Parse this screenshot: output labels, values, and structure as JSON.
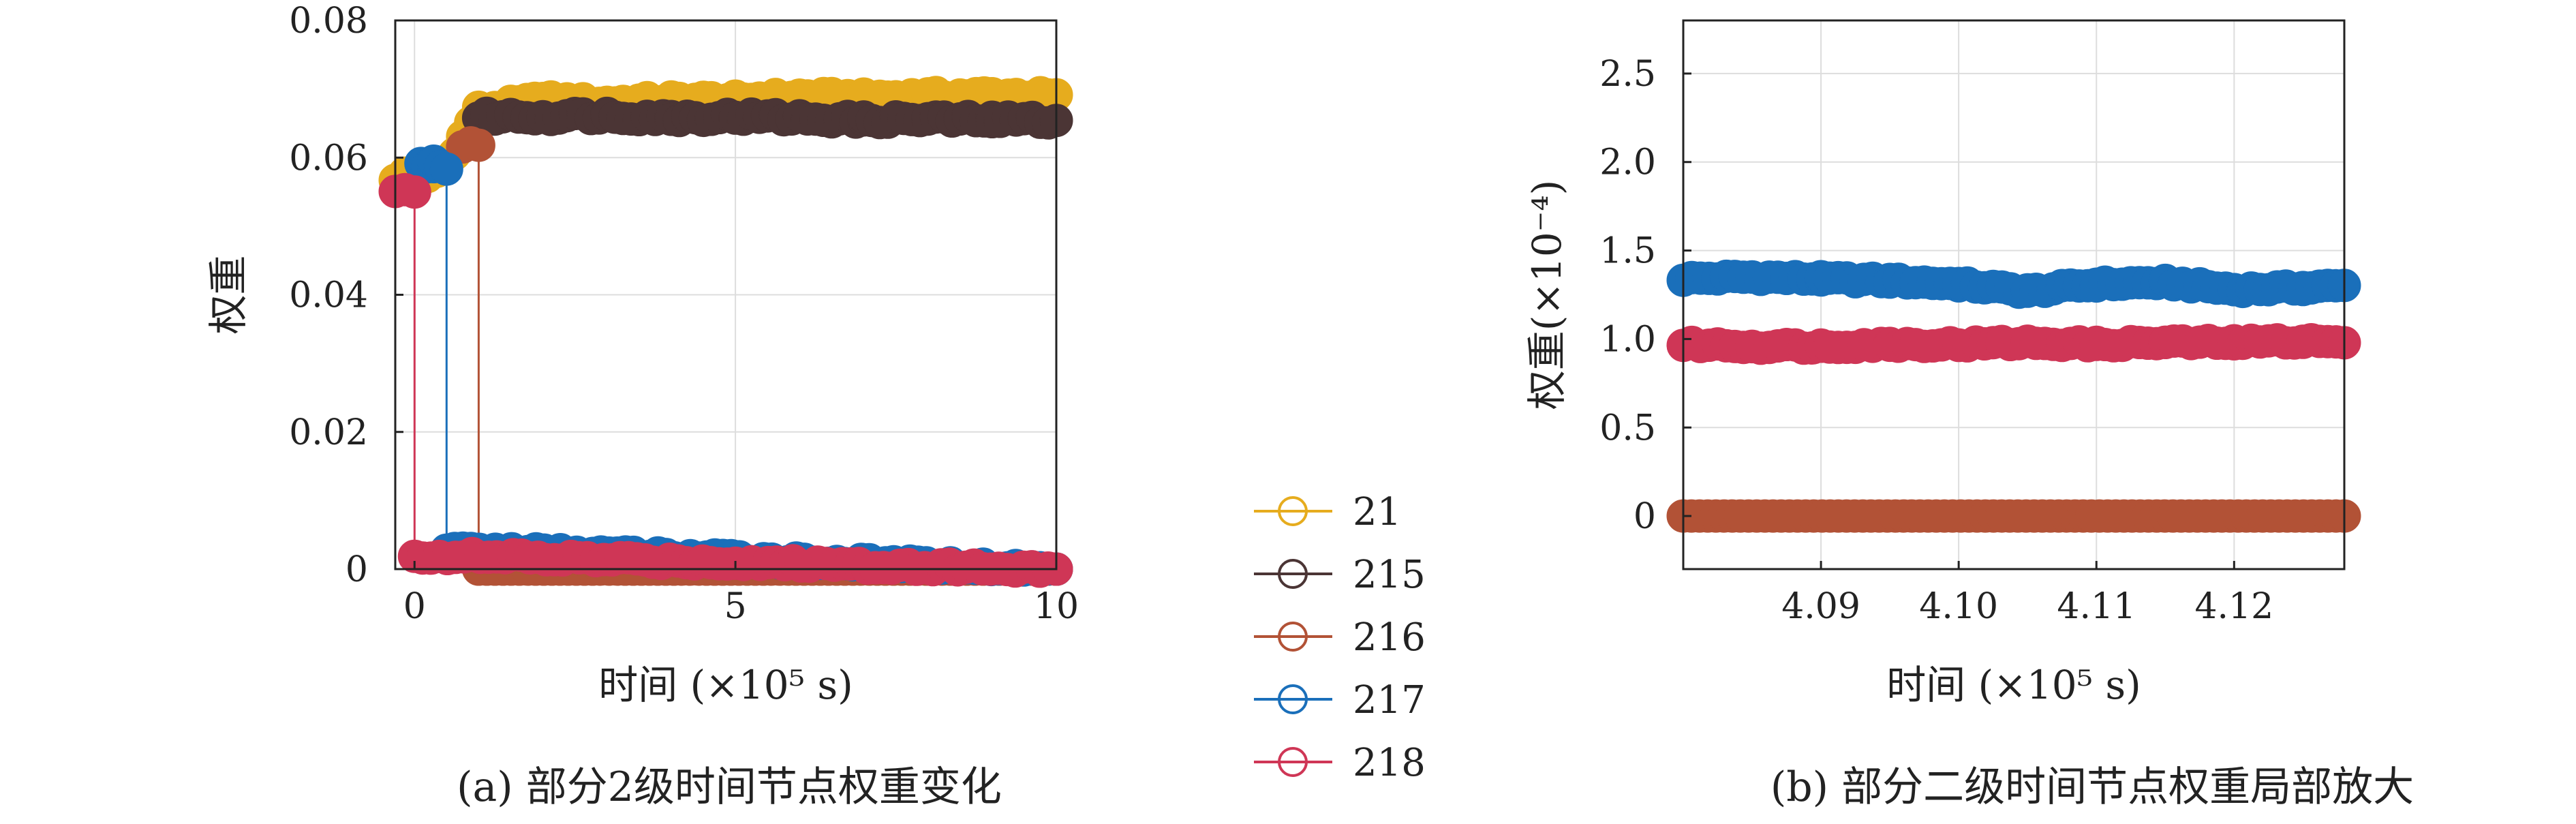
{
  "figure": {
    "caption_a": "(a) 部分2级时间节点权重变化",
    "caption_b": "(b) 部分二级时间节点权重局部放大"
  },
  "legend": [
    {
      "label": "21",
      "color": "#e6ac1e"
    },
    {
      "label": "215",
      "color": "#4b3535"
    },
    {
      "label": "216",
      "color": "#b25236"
    },
    {
      "label": "217",
      "color": "#1a6fba"
    },
    {
      "label": "218",
      "color": "#cf3656"
    }
  ],
  "chart_data": [
    {
      "type": "line",
      "panel": "a",
      "xlabel": "时间 (×10⁵ s)",
      "ylabel": "权重",
      "xlim": [
        -0.3,
        10
      ],
      "ylim": [
        0,
        0.08
      ],
      "xticks": [
        0,
        5,
        10
      ],
      "xtick_labels": [
        "0",
        "5",
        "10"
      ],
      "yticks": [
        0,
        0.02,
        0.04,
        0.06,
        0.08
      ],
      "ytick_labels": [
        "0",
        "0.02",
        "0.04",
        "0.06",
        "0.08"
      ],
      "grid": true,
      "series": [
        {
          "name": "21",
          "x": [
            -0.3,
            0,
            0.2,
            0.5,
            1.0,
            2,
            3,
            4,
            5,
            6,
            7,
            8,
            9,
            10
          ],
          "values": [
            0.057,
            0.058,
            0.057,
            0.059,
            0.067,
            0.0685,
            0.068,
            0.0685,
            0.0685,
            0.069,
            0.0688,
            0.069,
            0.0692,
            0.069
          ]
        },
        {
          "name": "215",
          "x": [
            1.0,
            2,
            3,
            4,
            5,
            6,
            7,
            8,
            9,
            10
          ],
          "values": [
            0.066,
            0.066,
            0.0662,
            0.0658,
            0.066,
            0.0658,
            0.0655,
            0.0656,
            0.0655,
            0.0655
          ]
        },
        {
          "name": "216",
          "x": [
            0.75,
            1.0,
            1.0,
            10
          ],
          "values": [
            0.062,
            0.062,
            0,
            0
          ]
        },
        {
          "name": "217",
          "x": [
            0.1,
            0.3,
            0.5,
            0.5,
            10
          ],
          "values": [
            0.059,
            0.059,
            0.058,
            0.003,
            0
          ]
        },
        {
          "name": "218",
          "x": [
            -0.3,
            0,
            0,
            10
          ],
          "values": [
            0.055,
            0.055,
            0.002,
            0
          ]
        }
      ]
    },
    {
      "type": "line",
      "panel": "b",
      "xlabel": "时间 (×10⁵ s)",
      "ylabel": "权重(×10⁻⁴)",
      "xlim": [
        4.08,
        4.128
      ],
      "ylim": [
        -0.3,
        2.8
      ],
      "xticks": [
        4.09,
        4.1,
        4.11,
        4.12
      ],
      "xtick_labels": [
        "4.09",
        "4.10",
        "4.11",
        "4.12"
      ],
      "yticks": [
        0,
        0.5,
        1.0,
        1.5,
        2.0,
        2.5
      ],
      "ytick_labels": [
        "0",
        "0.5",
        "1.0",
        "1.5",
        "2.0",
        "2.5"
      ],
      "grid": true,
      "series": [
        {
          "name": "217",
          "x": [
            4.08,
            4.085,
            4.09,
            4.095,
            4.1,
            4.105,
            4.11,
            4.115,
            4.12,
            4.125,
            4.128
          ],
          "values": [
            1.34,
            1.35,
            1.34,
            1.33,
            1.31,
            1.27,
            1.31,
            1.32,
            1.28,
            1.29,
            1.3
          ]
        },
        {
          "name": "218",
          "x": [
            4.08,
            4.085,
            4.09,
            4.095,
            4.1,
            4.105,
            4.11,
            4.115,
            4.12,
            4.125,
            4.128
          ],
          "values": [
            0.97,
            0.96,
            0.96,
            0.97,
            0.97,
            0.98,
            0.97,
            0.98,
            0.98,
            0.99,
            0.98
          ]
        },
        {
          "name": "216",
          "x": [
            4.08,
            4.128
          ],
          "values": [
            0.0,
            0.0
          ]
        }
      ]
    }
  ]
}
